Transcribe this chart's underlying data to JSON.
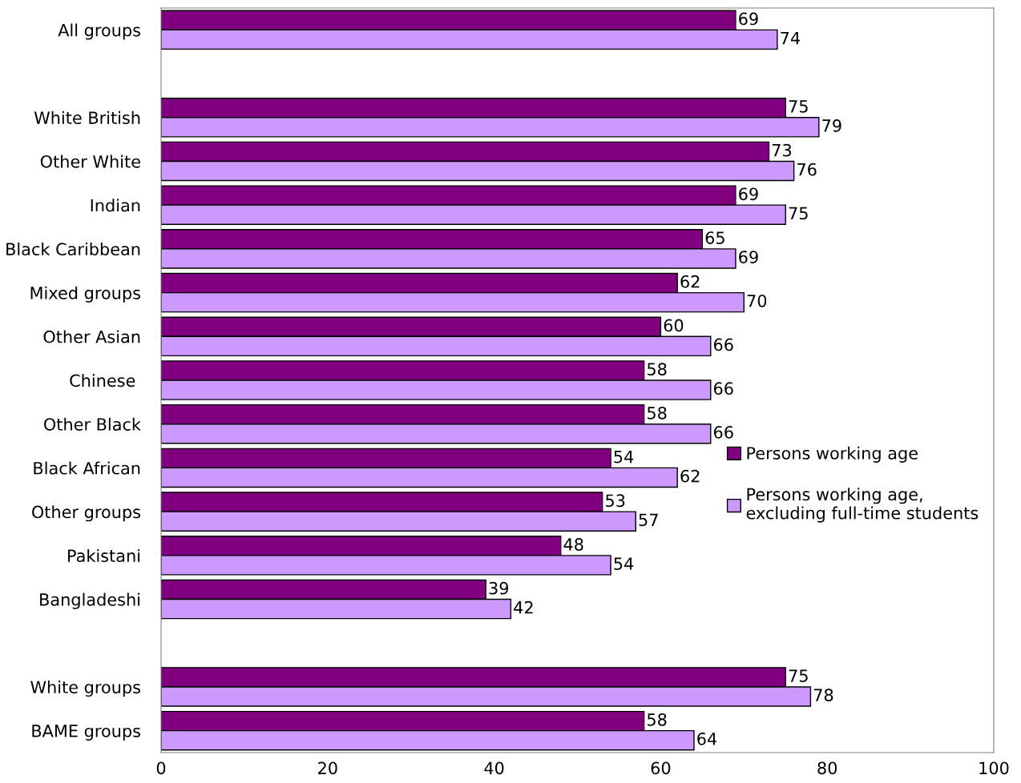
{
  "chart_data": {
    "type": "bar",
    "orientation": "horizontal",
    "categories": [
      "All groups",
      null,
      "White British",
      "Other White",
      "Indian",
      "Black Caribbean",
      "Mixed groups",
      "Other Asian",
      "Chinese ",
      "Other Black",
      "Black African",
      "Other groups",
      "Pakistani",
      "Bangladeshi",
      null,
      "White groups",
      "BAME groups"
    ],
    "series": [
      {
        "name": "Persons working age",
        "color": "#800080",
        "values": [
          69,
          null,
          75,
          73,
          69,
          65,
          62,
          60,
          58,
          58,
          54,
          53,
          48,
          39,
          null,
          75,
          58
        ]
      },
      {
        "name": "Persons working age,\nexcluding full-time students",
        "color": "#cc99ff",
        "values": [
          74,
          null,
          79,
          76,
          75,
          69,
          70,
          66,
          66,
          66,
          62,
          57,
          54,
          42,
          null,
          78,
          64
        ]
      }
    ],
    "xlim": [
      0,
      100
    ],
    "xticks": [
      0,
      20,
      40,
      60,
      80,
      100
    ],
    "grid": false,
    "legend": "right",
    "data_labels": true
  }
}
